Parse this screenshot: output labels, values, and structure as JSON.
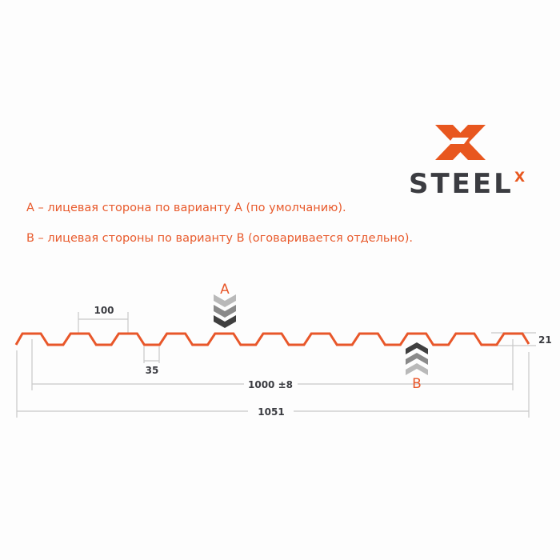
{
  "logo": {
    "text": "STEEL",
    "superscript": "X",
    "colors": {
      "orange": "#e8571f",
      "gray": "#3b3c41"
    }
  },
  "notes": [
    "А – лицевая сторона по варианту А (по умолчанию).",
    "В – лицевая стороны по варианту В (оговаривается отдельно)."
  ],
  "profile": {
    "color": "#e8572a",
    "corrugations": 11
  },
  "dimensions": {
    "pitch": "100",
    "bottom_width": "35",
    "useful_width": "1000 ±8",
    "total_width": "1051",
    "height": "21"
  },
  "sides": {
    "a_label": "A",
    "b_label": "B"
  }
}
